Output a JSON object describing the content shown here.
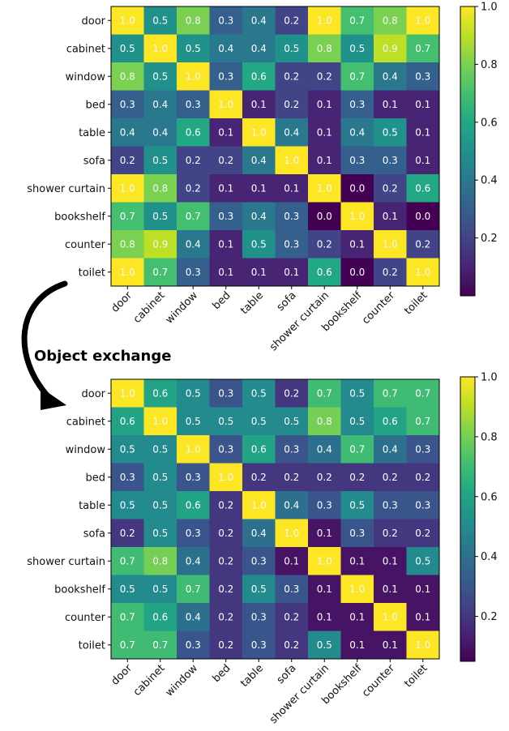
{
  "annotation": "Object  exchange",
  "chart_data": [
    {
      "type": "heatmap",
      "title": "",
      "rows": [
        "door",
        "cabinet",
        "window",
        "bed",
        "table",
        "sofa",
        "shower curtain",
        "bookshelf",
        "counter",
        "toilet"
      ],
      "columns": [
        "door",
        "cabinet",
        "window",
        "bed",
        "table",
        "sofa",
        "shower curtain",
        "bookshelf",
        "counter",
        "toilet"
      ],
      "values": [
        [
          1.0,
          0.5,
          0.8,
          0.3,
          0.4,
          0.2,
          1.0,
          0.7,
          0.8,
          1.0
        ],
        [
          0.5,
          1.0,
          0.5,
          0.4,
          0.4,
          0.5,
          0.8,
          0.5,
          0.9,
          0.7
        ],
        [
          0.8,
          0.5,
          1.0,
          0.3,
          0.6,
          0.2,
          0.2,
          0.7,
          0.4,
          0.3
        ],
        [
          0.3,
          0.4,
          0.3,
          1.0,
          0.1,
          0.2,
          0.1,
          0.3,
          0.1,
          0.1
        ],
        [
          0.4,
          0.4,
          0.6,
          0.1,
          1.0,
          0.4,
          0.1,
          0.4,
          0.5,
          0.1
        ],
        [
          0.2,
          0.5,
          0.2,
          0.2,
          0.4,
          1.0,
          0.1,
          0.3,
          0.3,
          0.1
        ],
        [
          1.0,
          0.8,
          0.2,
          0.1,
          0.1,
          0.1,
          1.0,
          0.0,
          0.2,
          0.6
        ],
        [
          0.7,
          0.5,
          0.7,
          0.3,
          0.4,
          0.3,
          0.0,
          1.0,
          0.1,
          0.0
        ],
        [
          0.8,
          0.9,
          0.4,
          0.1,
          0.5,
          0.3,
          0.2,
          0.1,
          1.0,
          0.2
        ],
        [
          1.0,
          0.7,
          0.3,
          0.1,
          0.1,
          0.1,
          0.6,
          0.0,
          0.2,
          1.0
        ]
      ],
      "colorbar": {
        "range": [
          0.0,
          1.0
        ],
        "ticks": [
          "0.2",
          "0.4",
          "0.6",
          "0.8",
          "1.0"
        ],
        "tick_values": [
          0.2,
          0.4,
          0.6,
          0.8,
          1.0
        ]
      },
      "colormap": "viridis"
    },
    {
      "type": "heatmap",
      "title": "",
      "rows": [
        "door",
        "cabinet",
        "window",
        "bed",
        "table",
        "sofa",
        "shower curtain",
        "bookshelf",
        "counter",
        "toilet"
      ],
      "columns": [
        "door",
        "cabinet",
        "window",
        "bed",
        "table",
        "sofa",
        "shower curtain",
        "bookshelf",
        "counter",
        "toilet"
      ],
      "values": [
        [
          1.0,
          0.6,
          0.5,
          0.3,
          0.5,
          0.2,
          0.7,
          0.5,
          0.7,
          0.7
        ],
        [
          0.6,
          1.0,
          0.5,
          0.5,
          0.5,
          0.5,
          0.8,
          0.5,
          0.6,
          0.7
        ],
        [
          0.5,
          0.5,
          1.0,
          0.3,
          0.6,
          0.3,
          0.4,
          0.7,
          0.4,
          0.3
        ],
        [
          0.3,
          0.5,
          0.3,
          1.0,
          0.2,
          0.2,
          0.2,
          0.2,
          0.2,
          0.2
        ],
        [
          0.5,
          0.5,
          0.6,
          0.2,
          1.0,
          0.4,
          0.3,
          0.5,
          0.3,
          0.3
        ],
        [
          0.2,
          0.5,
          0.3,
          0.2,
          0.4,
          1.0,
          0.1,
          0.3,
          0.2,
          0.2
        ],
        [
          0.7,
          0.8,
          0.4,
          0.2,
          0.3,
          0.1,
          1.0,
          0.1,
          0.1,
          0.5
        ],
        [
          0.5,
          0.5,
          0.7,
          0.2,
          0.5,
          0.3,
          0.1,
          1.0,
          0.1,
          0.1
        ],
        [
          0.7,
          0.6,
          0.4,
          0.2,
          0.3,
          0.2,
          0.1,
          0.1,
          1.0,
          0.1
        ],
        [
          0.7,
          0.7,
          0.3,
          0.2,
          0.3,
          0.2,
          0.5,
          0.1,
          0.1,
          1.0
        ]
      ],
      "colorbar": {
        "range": [
          0.05,
          1.0
        ],
        "ticks": [
          "0.2",
          "0.4",
          "0.6",
          "0.8",
          "1.0"
        ],
        "tick_values": [
          0.2,
          0.4,
          0.6,
          0.8,
          1.0
        ]
      },
      "colormap": "viridis"
    }
  ]
}
